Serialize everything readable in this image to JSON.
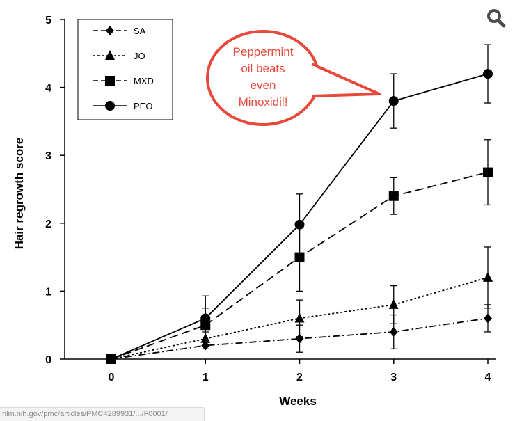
{
  "chart_data": {
    "type": "line",
    "title": "",
    "xlabel": "Weeks",
    "ylabel": "Hair regrowth score",
    "x": [
      0,
      1,
      2,
      3,
      4
    ],
    "xlim": [
      0,
      4
    ],
    "ylim": [
      0,
      5
    ],
    "x_ticks": [
      "0",
      "1",
      "2",
      "3",
      "4"
    ],
    "y_ticks": [
      "0",
      "1",
      "2",
      "3",
      "4",
      "5"
    ],
    "grid": false,
    "legend_position": "top-left",
    "series": [
      {
        "name": "SA",
        "marker": "diamond",
        "dash": "dash-dot",
        "values": [
          0,
          0.2,
          0.3,
          0.4,
          0.6
        ],
        "errors": [
          0,
          0.05,
          0.2,
          0.25,
          0.2
        ]
      },
      {
        "name": "JO",
        "marker": "triangle",
        "dash": "dotted",
        "values": [
          0,
          0.3,
          0.6,
          0.8,
          1.2
        ],
        "errors": [
          0,
          0.1,
          0.27,
          0.28,
          0.45
        ]
      },
      {
        "name": "MXD",
        "marker": "square",
        "dash": "dashed",
        "values": [
          0,
          0.5,
          1.5,
          2.4,
          2.75
        ],
        "errors": [
          0,
          0.25,
          0.5,
          0.27,
          0.48
        ]
      },
      {
        "name": "PEO",
        "marker": "circle",
        "dash": "solid",
        "values": [
          0,
          0.6,
          1.98,
          3.8,
          4.2
        ],
        "errors": [
          0,
          0.33,
          0.45,
          0.4,
          0.43
        ]
      }
    ],
    "annotation": {
      "text_lines": [
        "Peppermint",
        "oil beats",
        "even",
        "Minoxidil!"
      ],
      "color": "#e8483a",
      "border_color": "#e8483a",
      "fill": "#ffffff"
    }
  },
  "status_bar": {
    "url": "nlm.nih.gov/pmc/articles/PMC4289931/.../F0001/"
  },
  "zoom": {
    "icon": "magnifier-icon",
    "color": "#4d4d4d"
  }
}
